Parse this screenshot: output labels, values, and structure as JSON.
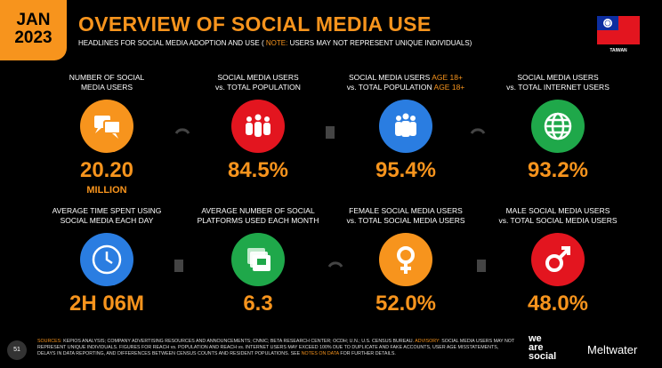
{
  "header": {
    "badge": [
      "JAN",
      "2023"
    ],
    "title": "OVERVIEW OF SOCIAL MEDIA USE",
    "subtitle": [
      {
        "text": "HEADLINES FOR SOCIAL MEDIA ADOPTION AND USE ("
      },
      {
        "text": "NOTE:",
        "accent": true
      },
      {
        "text": "USERS MAY NOT REPRESENT UNIQUE INDIVIDUALS)"
      }
    ],
    "country": "TAIWAN"
  },
  "tiles": [
    {
      "label": [
        {
          "text": "NUMBER OF SOCIAL"
        },
        {
          "text": "MEDIA USERS"
        }
      ],
      "value": "20.20",
      "unit": "MILLION",
      "color": "#f7941d",
      "icon": "chat"
    },
    {
      "label": [
        {
          "text": "SOCIAL MEDIA USERS"
        },
        {
          "text": "vs. TOTAL POPULATION"
        }
      ],
      "value": "84.5%",
      "color": "#e3151f",
      "icon": "people"
    },
    {
      "label": [
        {
          "text": "SOCIAL MEDIA USERS",
          "accent": "AGE 18+"
        },
        {
          "text": "vs. TOTAL POPULATION",
          "accent": "AGE 18+"
        }
      ],
      "value": "95.4%",
      "color": "#2a7de1",
      "icon": "adults"
    },
    {
      "label": [
        {
          "text": "SOCIAL MEDIA USERS"
        },
        {
          "text": "vs. TOTAL INTERNET USERS"
        }
      ],
      "value": "93.2%",
      "color": "#1fa84a",
      "icon": "globe"
    },
    {
      "label": [
        {
          "text": "AVERAGE TIME SPENT USING"
        },
        {
          "text": "SOCIAL MEDIA EACH DAY"
        }
      ],
      "value": "2H 06M",
      "color": "#2a7de1",
      "icon": "clock"
    },
    {
      "label": [
        {
          "text": "AVERAGE NUMBER OF SOCIAL"
        },
        {
          "text": "PLATFORMS USED EACH MONTH"
        }
      ],
      "value": "6.3",
      "color": "#1fa84a",
      "icon": "cards"
    },
    {
      "label": [
        {
          "text": "FEMALE SOCIAL MEDIA USERS"
        },
        {
          "text": "vs. TOTAL SOCIAL MEDIA USERS"
        }
      ],
      "value": "52.0%",
      "color": "#f7941d",
      "icon": "female"
    },
    {
      "label": [
        {
          "text": "MALE SOCIAL MEDIA USERS"
        },
        {
          "text": "vs. TOTAL SOCIAL MEDIA USERS"
        }
      ],
      "value": "48.0%",
      "color": "#e3151f",
      "icon": "male"
    }
  ],
  "footer": {
    "page": "51",
    "sources": [
      {
        "text": "SOURCES:",
        "accent": true
      },
      {
        "text": "KEPIOS ANALYSIS; COMPANY ADVERTISING RESOURCES AND ANNOUNCEMENTS; CNNIC; BETA RESEARCH CENTER; OCDH; U.N.; U.S. CENSUS BUREAU."
      },
      {
        "text": "ADVISORY:",
        "accent": true
      },
      {
        "text": "SOCIAL MEDIA USERS MAY NOT REPRESENT UNIQUE INDIVIDUALS. FIGURES FOR REACH vs. POPULATION AND REACH vs. INTERNET USERS MAY EXCEED 100% DUE TO DUPLICATE AND FAKE ACCOUNTS, USER AGE MISSTATEMENTS, DELAYS IN DATA REPORTING, AND DIFFERENCES BETWEEN CENSUS COUNTS AND RESIDENT POPULATIONS. SEE"
      },
      {
        "text": "NOTES ON DATA",
        "accent": true
      },
      {
        "text": "FOR FURTHER DETAILS."
      }
    ],
    "brand1": [
      "we",
      "are",
      "social"
    ],
    "brand2": "Meltwater"
  }
}
